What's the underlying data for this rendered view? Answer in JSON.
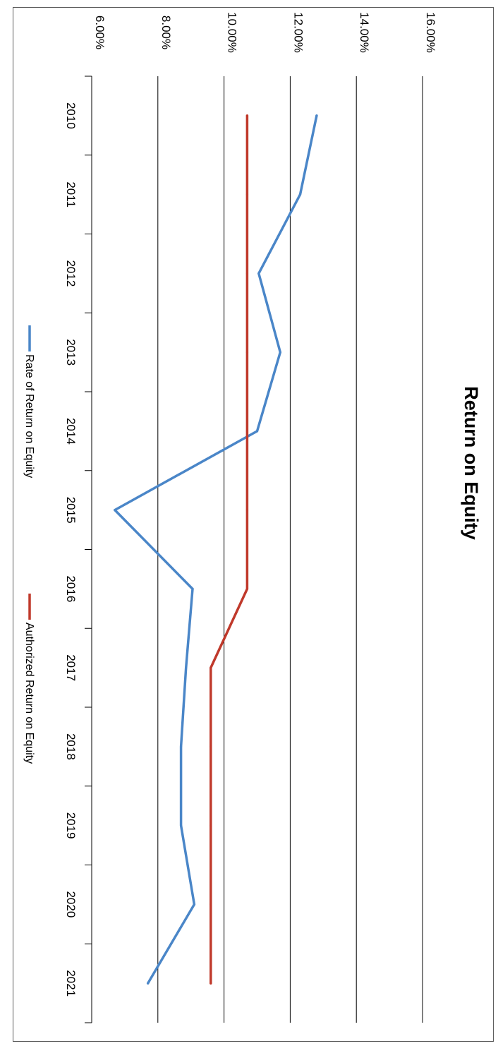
{
  "chart_data": {
    "type": "line",
    "title": "Return on Equity",
    "orientation": "rotated-90-clockwise",
    "categories": [
      "2010",
      "2011",
      "2012",
      "2013",
      "2014",
      "2015",
      "2016",
      "2017",
      "2018",
      "2019",
      "2020",
      "2021"
    ],
    "y_ticks": [
      "6.00%",
      "8.00%",
      "10.00%",
      "12.00%",
      "14.00%",
      "16.00%"
    ],
    "ylim": [
      6,
      16
    ],
    "y_unit": "%",
    "grid": true,
    "legend_position": "bottom",
    "series": [
      {
        "name": "Rate of Return on Equity",
        "color": "#4a86c8",
        "values": [
          12.8,
          12.3,
          11.05,
          11.7,
          11.0,
          6.7,
          9.05,
          8.85,
          8.7,
          8.7,
          9.1,
          7.7
        ]
      },
      {
        "name": "Authorized Return on Equity",
        "color": "#c0392b",
        "values": [
          10.7,
          10.7,
          10.7,
          10.7,
          10.7,
          10.7,
          10.7,
          9.6,
          9.6,
          9.6,
          9.6,
          9.6
        ]
      }
    ]
  }
}
